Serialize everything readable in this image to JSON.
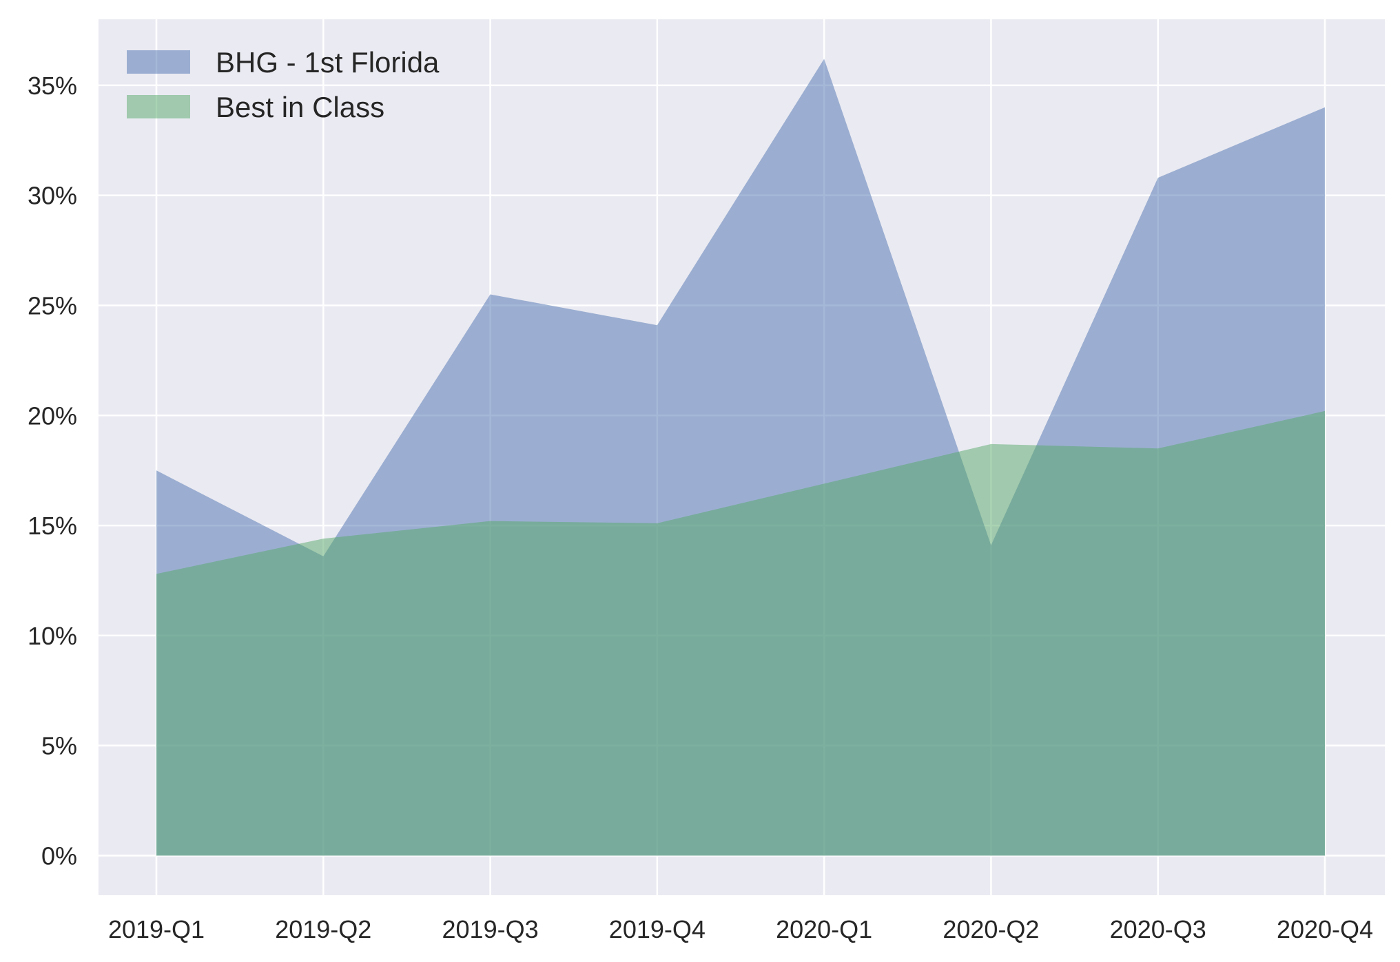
{
  "chart_data": {
    "type": "area",
    "title": "",
    "xlabel": "",
    "ylabel": "",
    "categories": [
      "2019-Q1",
      "2019-Q2",
      "2019-Q3",
      "2019-Q4",
      "2020-Q1",
      "2020-Q2",
      "2020-Q3",
      "2020-Q4"
    ],
    "ylim": [
      -1.8,
      38
    ],
    "yticks": [
      0,
      5,
      10,
      15,
      20,
      25,
      30,
      35
    ],
    "ytick_labels": [
      "0%",
      "5%",
      "10%",
      "15%",
      "20%",
      "25%",
      "30%",
      "35%"
    ],
    "grid": true,
    "legend_position": "top-left",
    "series": [
      {
        "name": "BHG - 1st Florida",
        "color": "#4c72b0",
        "values": [
          17.5,
          13.6,
          25.5,
          24.1,
          36.2,
          14.1,
          30.8,
          34.0
        ]
      },
      {
        "name": "Best in Class",
        "color": "#55a868",
        "values": [
          12.8,
          14.4,
          15.2,
          15.1,
          16.9,
          18.7,
          18.5,
          20.2
        ]
      }
    ],
    "background_color": "#eaeaf2",
    "grid_color": "#ffffff",
    "fill_alpha": 0.5
  }
}
